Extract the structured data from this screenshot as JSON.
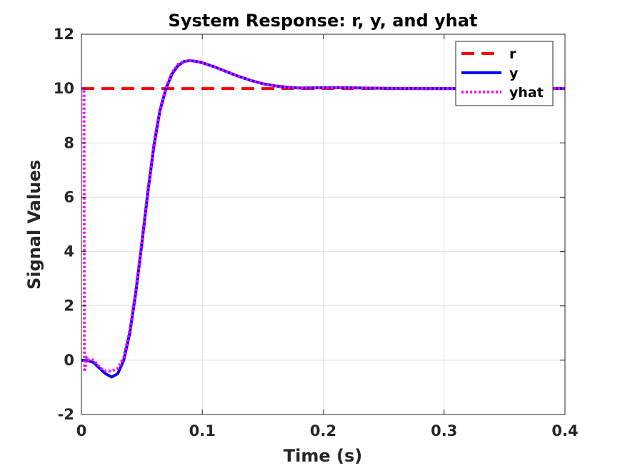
{
  "chart_data": {
    "type": "line",
    "title": "System Response: r, y, and yhat",
    "xlabel": "Time (s)",
    "ylabel": "Signal Values",
    "xlim": [
      0,
      0.4
    ],
    "ylim": [
      -2,
      12
    ],
    "xticks": [
      0,
      0.1,
      0.2,
      0.3,
      0.4
    ],
    "xtick_labels": [
      "0",
      "0.1",
      "0.2",
      "0.3",
      "0.4"
    ],
    "yticks": [
      -2,
      0,
      2,
      4,
      6,
      8,
      10,
      12
    ],
    "ytick_labels": [
      "-2",
      "0",
      "2",
      "4",
      "6",
      "8",
      "10",
      "12"
    ],
    "grid": true,
    "legend_position": "top-right",
    "series": [
      {
        "name": "r",
        "color": "#ff0000",
        "style": "dashed",
        "x": [
          0,
          0.4
        ],
        "y": [
          10,
          10
        ]
      },
      {
        "name": "y",
        "color": "#0000ff",
        "style": "solid",
        "x": [
          0,
          0.005,
          0.01,
          0.015,
          0.02,
          0.025,
          0.03,
          0.035,
          0.04,
          0.045,
          0.05,
          0.055,
          0.06,
          0.065,
          0.07,
          0.075,
          0.08,
          0.085,
          0.09,
          0.095,
          0.1,
          0.11,
          0.12,
          0.13,
          0.14,
          0.15,
          0.16,
          0.17,
          0.18,
          0.2,
          0.22,
          0.25,
          0.28,
          0.3,
          0.35,
          0.4
        ],
        "y": [
          0,
          -0.02,
          -0.08,
          -0.3,
          -0.5,
          -0.62,
          -0.5,
          0.0,
          1.0,
          2.5,
          4.3,
          6.2,
          7.9,
          9.2,
          10.0,
          10.55,
          10.85,
          11.0,
          11.03,
          11.0,
          10.95,
          10.8,
          10.62,
          10.45,
          10.3,
          10.18,
          10.1,
          10.05,
          10.02,
          10.03,
          10.03,
          10.01,
          10.0,
          10.0,
          10.0,
          10.0
        ]
      },
      {
        "name": "yhat",
        "color": "#ff00ff",
        "style": "dotted",
        "x": [
          0,
          0.001,
          0.002,
          0.0025,
          0.003,
          0.004,
          0.005,
          0.008,
          0.012,
          0.016,
          0.02,
          0.025,
          0.03,
          0.035,
          0.04,
          0.045,
          0.05,
          0.055,
          0.06,
          0.065,
          0.07,
          0.075,
          0.08,
          0.085,
          0.09,
          0.095,
          0.1,
          0.11,
          0.12,
          0.13,
          0.14,
          0.15,
          0.16,
          0.17,
          0.18,
          0.2,
          0.22,
          0.25,
          0.28,
          0.3,
          0.35,
          0.4
        ],
        "y": [
          10,
          10,
          10,
          -0.35,
          -0.35,
          0.1,
          0.0,
          0.05,
          -0.1,
          -0.3,
          -0.4,
          -0.4,
          -0.3,
          0.1,
          1.1,
          2.6,
          4.4,
          6.3,
          8.0,
          9.25,
          10.05,
          10.6,
          10.9,
          11.0,
          11.03,
          11.0,
          10.95,
          10.8,
          10.62,
          10.45,
          10.3,
          10.18,
          10.1,
          10.05,
          10.02,
          10.03,
          10.03,
          10.01,
          10.0,
          10.0,
          10.0,
          10.0
        ]
      }
    ]
  }
}
